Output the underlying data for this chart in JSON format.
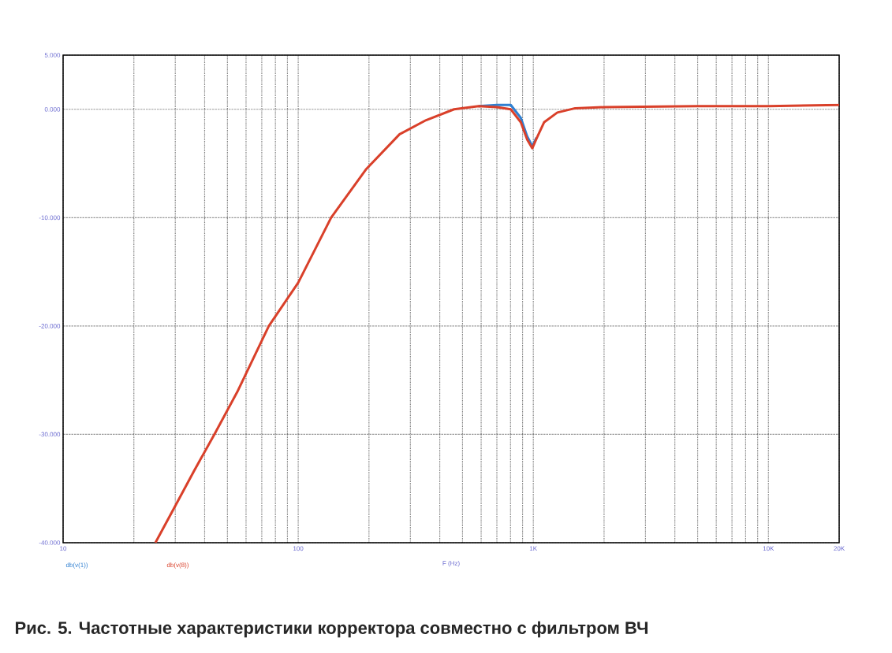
{
  "chart_data": {
    "type": "line",
    "title": "Рис. 5. Частотные характеристики корректора совместно с фильтром ВЧ",
    "xlabel": "F (Hz)",
    "log": "x",
    "grid": true,
    "line_style": "solid",
    "marker": "none",
    "xlim": [
      10,
      20000
    ],
    "ylim": [
      -40,
      5
    ],
    "xticks": [
      10,
      100,
      {
        "value": 1000,
        "label": "1K"
      },
      {
        "value": 10000,
        "label": "10K"
      },
      {
        "value": 20000,
        "label": "20K"
      }
    ],
    "yticks": [
      {
        "value": 5,
        "label": "5.000"
      },
      {
        "value": 0,
        "label": "0.000"
      },
      {
        "value": -10,
        "label": "-10.000"
      },
      {
        "value": -20,
        "label": "-20.000"
      },
      {
        "value": -30,
        "label": "-30.000"
      },
      {
        "value": -40,
        "label": "-40.000"
      }
    ],
    "x": [
      24.7,
      30,
      36,
      44,
      55,
      75,
      100,
      138,
      195,
      270,
      350,
      460,
      585,
      700,
      802,
      885,
      942,
      990,
      1032,
      1111,
      1265,
      1507,
      2000,
      5000,
      10000,
      20000
    ],
    "series": [
      {
        "name": "db(v(1))",
        "color": "#2f7fd0",
        "values": [
          null,
          null,
          null,
          null,
          null,
          null,
          null,
          null,
          null,
          null,
          null,
          null,
          0.3,
          0.4,
          0.4,
          -0.8,
          -2.5,
          -3.4,
          -2.6,
          null,
          null,
          null,
          null,
          null,
          null,
          null
        ]
      },
      {
        "name": "db(v(8))",
        "color": "#d9402a",
        "values": [
          -40,
          -36.6,
          -33.4,
          -30,
          -26.1,
          -20,
          -16,
          -10,
          -5.5,
          -2.3,
          -1,
          0,
          0.3,
          0.2,
          0,
          -1.2,
          -2.8,
          -3.6,
          -2.7,
          -1.2,
          -0.3,
          0.1,
          0.2,
          0.3,
          0.3,
          0.4
        ]
      }
    ]
  }
}
